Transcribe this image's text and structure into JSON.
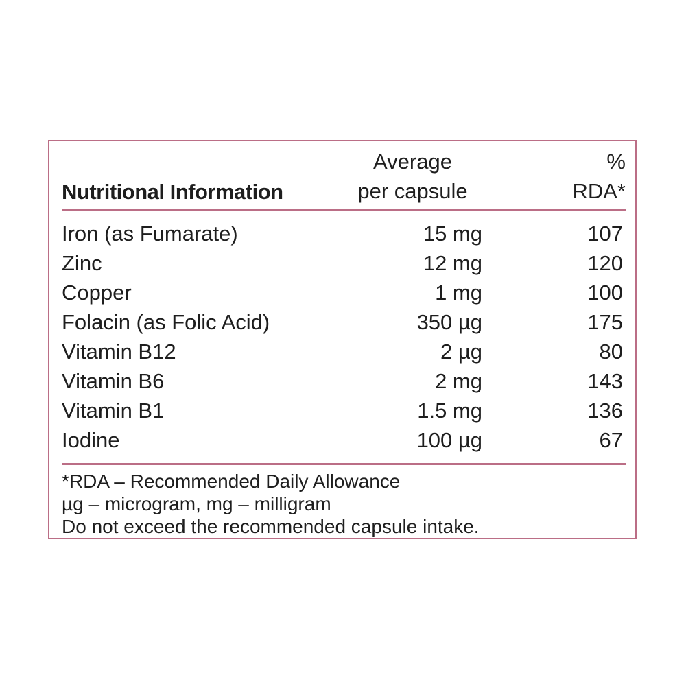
{
  "table": {
    "header": {
      "name_col": "Nutritional Information",
      "amount_line1": "Average",
      "amount_line2": "per capsule",
      "rda_line1": "%",
      "rda_line2": "RDA*"
    },
    "rows": [
      {
        "name": "Iron (as Fumarate)",
        "amount": "15 mg",
        "rda": "107"
      },
      {
        "name": "Zinc",
        "amount": "12 mg",
        "rda": "120"
      },
      {
        "name": "Copper",
        "amount": "1 mg",
        "rda": "100"
      },
      {
        "name": "Folacin (as Folic Acid)",
        "amount": "350 µg",
        "rda": "175"
      },
      {
        "name": "Vitamin B12",
        "amount": "2 µg",
        "rda": "80"
      },
      {
        "name": "Vitamin B6",
        "amount": "2 mg",
        "rda": "143"
      },
      {
        "name": "Vitamin B1",
        "amount": "1.5 mg",
        "rda": "136"
      },
      {
        "name": "Iodine",
        "amount": "100 µg",
        "rda": "67"
      }
    ],
    "footnotes": [
      "*RDA – Recommended Daily Allowance",
      "µg – microgram, mg – milligram",
      "Do not exceed the recommended capsule intake."
    ],
    "colors": {
      "accent": "#bb6e86",
      "text": "#1e1e1e",
      "background": "#ffffff"
    }
  }
}
